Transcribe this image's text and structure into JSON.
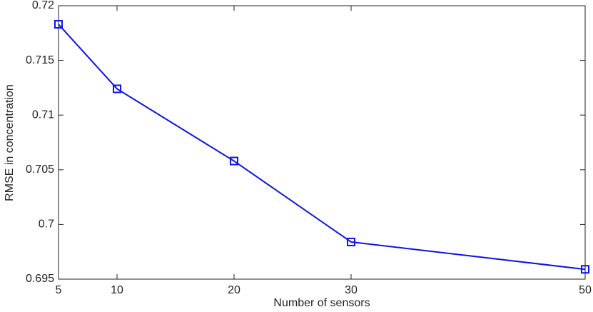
{
  "chart_data": {
    "type": "line",
    "x_label": "Number of sensors",
    "y_label": "RMSE in concentration",
    "x": [
      5,
      10,
      20,
      30,
      50
    ],
    "series": [
      {
        "color": "#0a14e6",
        "marker": "square",
        "values": [
          0.7183,
          0.7124,
          0.7058,
          0.6984,
          0.6959
        ]
      }
    ],
    "xlim": [
      5,
      50
    ],
    "xticks": [
      5,
      10,
      20,
      30,
      50
    ],
    "ylim": [
      0.695,
      0.72
    ],
    "yticks": [
      0.695,
      0.7,
      0.705,
      0.71,
      0.715,
      0.72
    ],
    "grid": false
  }
}
